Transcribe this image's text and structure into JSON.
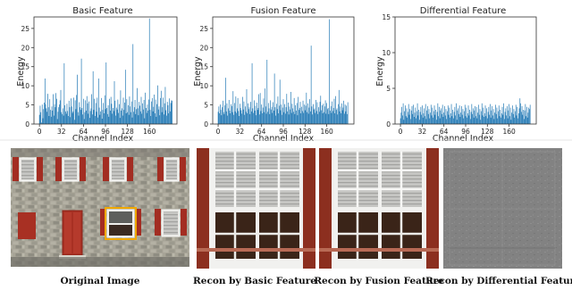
{
  "chart_data": [
    {
      "type": "bar",
      "title": "Basic Feature",
      "xlabel": "Channel Index",
      "ylabel": "Energy",
      "xlim": [
        -8,
        200
      ],
      "ylim": [
        0,
        28
      ],
      "xticks": [
        0,
        32,
        64,
        96,
        128,
        160
      ],
      "yticks": [
        0,
        5,
        10,
        15,
        20,
        25
      ],
      "grid": false,
      "color": "#1f77b4",
      "n_channels": 192,
      "values": [
        2.4,
        4.8,
        3.1,
        0.4,
        5.1,
        1.5,
        3.9,
        5.6,
        11.9,
        5.2,
        4.1,
        3.2,
        7.9,
        4.4,
        2.1,
        6.5,
        3.7,
        1.9,
        4.6,
        3.5,
        7.8,
        2.2,
        5.2,
        4.4,
        8.1,
        6.6,
        1.3,
        3.2,
        4.4,
        5.1,
        6.2,
        8.9,
        3.1,
        2.6,
        4.1,
        2.2,
        15.9,
        4.9,
        3.3,
        2.7,
        5.3,
        3.4,
        2.1,
        6.1,
        4.4,
        1.8,
        6.7,
        4.6,
        2.9,
        3.3,
        6.9,
        1.1,
        6.2,
        3.9,
        7.6,
        12.9,
        3.1,
        2.2,
        5.7,
        4.4,
        3.7,
        17.1,
        4.2,
        2.5,
        6.6,
        1.3,
        3.1,
        6.2,
        3.5,
        7.3,
        5.4,
        2.7,
        5.9,
        1.6,
        3.4,
        4.1,
        7.8,
        2.5,
        13.8,
        3.7,
        6.6,
        2.1,
        5.5,
        3.2,
        6.9,
        1.7,
        11.9,
        4.3,
        2.4,
        3.3,
        6.8,
        1.4,
        3.7,
        5.5,
        2.8,
        7.5,
        3.9,
        16.1,
        4.2,
        2.6,
        4.9,
        1.9,
        6.6,
        3.5,
        7.1,
        5.3,
        2.7,
        4.2,
        3.4,
        11.2,
        6.1,
        2.2,
        4.3,
        3.8,
        6.4,
        2.9,
        5.2,
        1.6,
        8.8,
        3.5,
        4.1,
        2.2,
        6.9,
        3.7,
        5.6,
        14.2,
        2.8,
        6.5,
        3.1,
        4.9,
        2.4,
        7.2,
        4.6,
        3.1,
        5.9,
        1.7,
        20.9,
        3.2,
        4.4,
        6.3,
        2.6,
        3.9,
        9.4,
        4.1,
        2.3,
        5.8,
        4.8,
        3.3,
        7.1,
        2.7,
        5.4,
        3.8,
        6.3,
        1.5,
        8.2,
        4.2,
        2.9,
        5.1,
        3.5,
        6.4,
        27.6,
        3.7,
        2.1,
        5.9,
        6.8,
        3.3,
        4.5,
        7.7,
        2.8,
        6.4,
        1.9,
        5.2,
        10.1,
        3.8,
        4.6,
        2.3,
        6.8,
        8.7,
        3.1,
        4.4,
        6.9,
        2.5,
        5.4,
        9.7,
        3.6,
        2.2,
        5.8,
        4.9,
        2.8,
        6.7,
        3.3,
        5.5,
        6.2,
        6.1
      ]
    },
    {
      "type": "bar",
      "title": "Fusion Feature",
      "xlabel": "Channel Index",
      "ylabel": "Energy",
      "xlim": [
        -8,
        200
      ],
      "ylim": [
        0,
        28
      ],
      "xticks": [
        0,
        32,
        64,
        96,
        128,
        160
      ],
      "yticks": [
        0,
        5,
        10,
        15,
        20,
        25
      ],
      "grid": false,
      "color": "#1f77b4",
      "n_channels": 192,
      "values": [
        3.2,
        4.6,
        2.8,
        5.1,
        3.7,
        2.3,
        4.4,
        6.1,
        3.1,
        2.6,
        4.9,
        12.1,
        3.3,
        5.4,
        2.2,
        4.1,
        6.3,
        3.5,
        2.8,
        5.2,
        4.7,
        3.1,
        8.6,
        2.4,
        5.5,
        3.3,
        7.2,
        2.9,
        4.1,
        6.8,
        3.4,
        2.1,
        5.3,
        4.2,
        3.6,
        2.7,
        7.1,
        3.8,
        5.9,
        2.4,
        4.6,
        3.2,
        9.1,
        2.8,
        5.4,
        3.9,
        4.4,
        2.6,
        5.8,
        3.3,
        15.9,
        4.1,
        2.9,
        6.2,
        3.5,
        4.8,
        2.3,
        5.6,
        3.7,
        4.2,
        7.8,
        2.5,
        8.1,
        3.4,
        5.1,
        2.8,
        4.3,
        6.7,
        3.1,
        9.3,
        4.6,
        2.7,
        16.8,
        3.2,
        5.5,
        4.1,
        2.6,
        6.2,
        3.8,
        4.5,
        2.9,
        5.7,
        3.5,
        13.2,
        4.4,
        2.2,
        5.3,
        3.9,
        7.2,
        2.8,
        4.8,
        11.6,
        3.6,
        5.1,
        2.4,
        4.3,
        6.5,
        3.1,
        5.2,
        2.7,
        4.4,
        7.9,
        3.3,
        5.6,
        2.5,
        4.6,
        3.8,
        8.4,
        2.9,
        5.3,
        4.1,
        3.2,
        6.8,
        2.6,
        4.9,
        3.5,
        5.5,
        2.3,
        7.1,
        3.7,
        4.2,
        5.8,
        2.8,
        4.5,
        3.4,
        6.1,
        2.9,
        5.1,
        3.6,
        4.8,
        8.2,
        3.1,
        5.4,
        2.7,
        4.3,
        6.5,
        3.3,
        20.5,
        4.6,
        2.5,
        5.2,
        3.8,
        4.1,
        2.9,
        6.3,
        3.4,
        5.7,
        2.6,
        4.4,
        3.2,
        5.8,
        7.4,
        3.6,
        4.9,
        2.8,
        5.3,
        3.1,
        4.6,
        6.2,
        2.7,
        5.5,
        3.9,
        4.2,
        2.6,
        27.4,
        3.5,
        4.7,
        2.9,
        5.9,
        3.4,
        4.2,
        6.6,
        2.8,
        7.3,
        3.7,
        4.1,
        2.5,
        5.2,
        8.9,
        3.3,
        4.6,
        2.8,
        5.4,
        3.6,
        4.3,
        6.1,
        2.7,
        5.1,
        3.3,
        4.8,
        2.6,
        5.7
      ]
    },
    {
      "type": "bar",
      "title": "Differential Feature",
      "xlabel": "Channel Index",
      "ylabel": "Energy",
      "xlim": [
        -8,
        200
      ],
      "ylim": [
        0,
        15
      ],
      "xticks": [
        0,
        32,
        64,
        96,
        128,
        160
      ],
      "yticks": [
        0,
        5,
        10,
        15
      ],
      "grid": false,
      "color": "#1f77b4",
      "n_channels": 192,
      "values": [
        0.8,
        1.6,
        2.4,
        1.2,
        2.9,
        0.6,
        1.8,
        2.6,
        1.1,
        2.2,
        0.9,
        1.7,
        2.8,
        1.3,
        2.1,
        0.7,
        1.9,
        2.5,
        1.4,
        2.7,
        1.0,
        1.6,
        2.3,
        0.8,
        1.8,
        2.9,
        1.2,
        2.0,
        0.6,
        1.7,
        2.4,
        1.3,
        2.6,
        0.9,
        1.5,
        2.2,
        1.1,
        2.8,
        0.7,
        1.9,
        2.5,
        1.4,
        2.1,
        0.8,
        1.6,
        2.7,
        1.2,
        2.3,
        0.9,
        1.8,
        2.6,
        1.3,
        2.0,
        0.6,
        1.7,
        2.9,
        1.1,
        2.4,
        0.8,
        1.9,
        2.2,
        1.4,
        2.7,
        1.0,
        1.6,
        2.5,
        1.2,
        2.1,
        0.7,
        1.8,
        2.6,
        1.3,
        2.3,
        0.9,
        1.5,
        2.8,
        1.1,
        2.0,
        0.8,
        1.7,
        2.4,
        1.2,
        2.9,
        0.6,
        1.9,
        2.2,
        1.4,
        2.6,
        1.0,
        1.6,
        2.5,
        1.3,
        2.1,
        0.8,
        1.8,
        2.7,
        1.1,
        2.3,
        0.9,
        1.5,
        2.6,
        1.2,
        2.0,
        0.7,
        1.7,
        2.8,
        1.4,
        2.2,
        0.9,
        1.9,
        2.5,
        1.1,
        2.4,
        0.8,
        1.6,
        2.7,
        1.3,
        2.1,
        0.6,
        1.8,
        2.9,
        1.2,
        2.3,
        1.0,
        1.5,
        2.6,
        1.1,
        2.2,
        0.8,
        1.7,
        2.4,
        1.3,
        2.8,
        0.9,
        1.9,
        2.5,
        1.2,
        2.1,
        0.7,
        1.6,
        2.7,
        1.4,
        2.3,
        0.8,
        1.8,
        2.6,
        1.1,
        2.0,
        0.9,
        1.5,
        2.4,
        1.3,
        2.9,
        0.7,
        1.7,
        2.2,
        1.2,
        2.5,
        0.8,
        1.9,
        2.8,
        1.1,
        2.3,
        0.6,
        1.6,
        2.6,
        1.4,
        2.1,
        0.9,
        1.8,
        2.7,
        1.2,
        2.4,
        0.8,
        1.5,
        2.2,
        3.6,
        2.9,
        1.7,
        2.5,
        1.3,
        2.0,
        0.7,
        1.9,
        2.8,
        1.1,
        2.4,
        0.9,
        1.6,
        2.3,
        2.1,
        2.7
      ]
    }
  ],
  "images": [
    {
      "caption": "Original Image",
      "content": "building-facade-photo"
    },
    {
      "caption": "Recon by Basic Feature",
      "content": "window-crop-photo"
    },
    {
      "caption": "Recon by Fusion Feature",
      "content": "window-crop-photo"
    },
    {
      "caption": "Recon by Differential Feature",
      "content": "grey-residual-map"
    }
  ],
  "highlight_color": "#f0a800"
}
